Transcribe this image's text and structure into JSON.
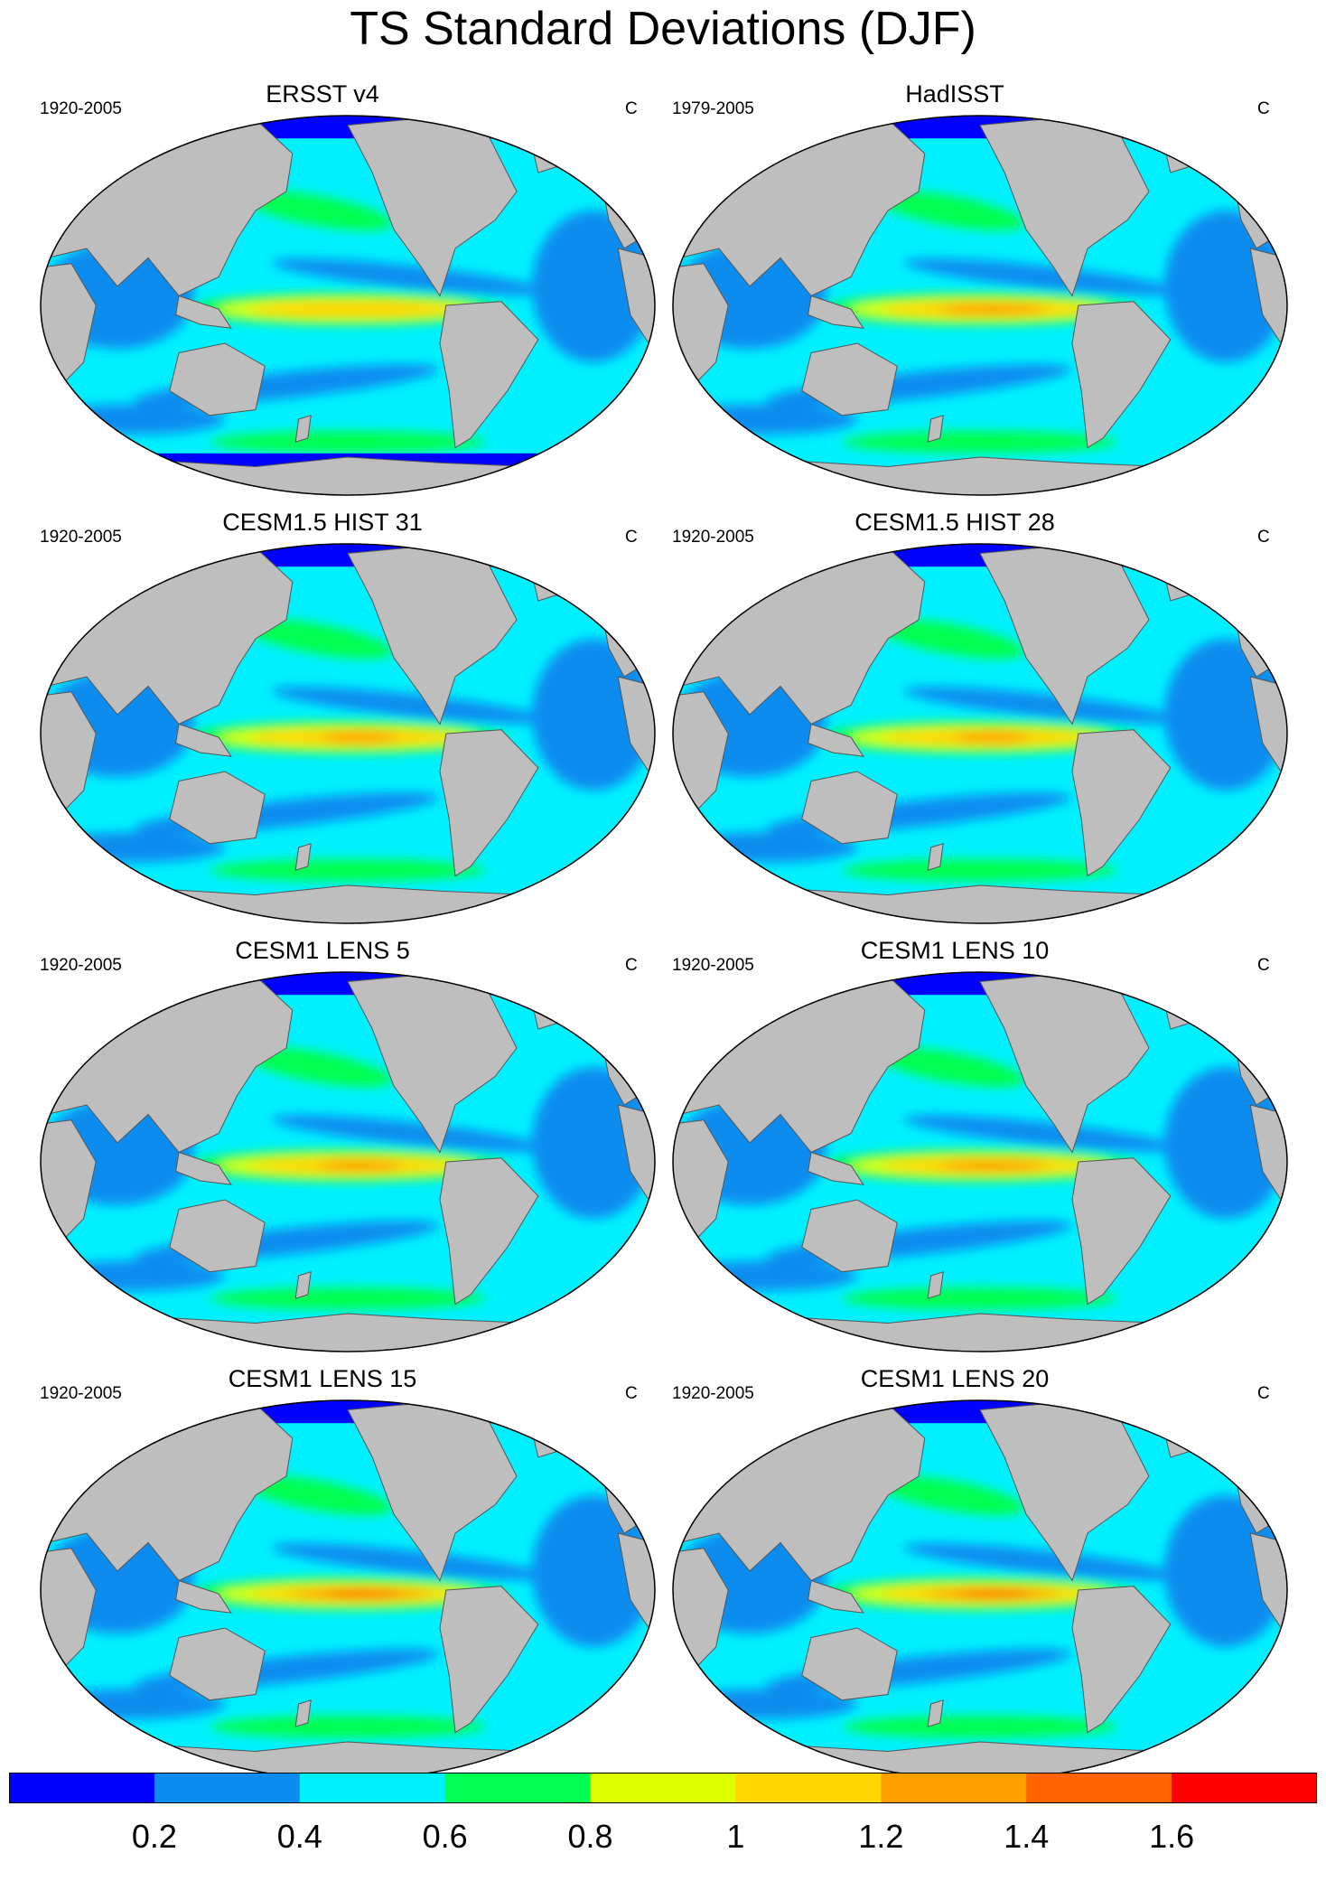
{
  "title": "TS Standard Deviations (DJF)",
  "units": "C",
  "panels": [
    {
      "title": "ERSST v4",
      "period": "1920-2005",
      "units": "C",
      "nino_strength": 0.35,
      "has_ice_bands": true
    },
    {
      "title": "HadISST",
      "period": "1979-2005",
      "units": "C",
      "nino_strength": 0.7,
      "has_ice_bands": false
    },
    {
      "title": "CESM1.5 HIST 31",
      "period": "1920-2005",
      "units": "C",
      "nino_strength": 0.5,
      "has_ice_bands": false
    },
    {
      "title": "CESM1.5 HIST 28",
      "period": "1920-2005",
      "units": "C",
      "nino_strength": 0.5,
      "has_ice_bands": false
    },
    {
      "title": "CESM1 LENS 5",
      "period": "1920-2005",
      "units": "C",
      "nino_strength": 0.55,
      "has_ice_bands": false
    },
    {
      "title": "CESM1 LENS 10",
      "period": "1920-2005",
      "units": "C",
      "nino_strength": 0.7,
      "has_ice_bands": false
    },
    {
      "title": "CESM1 LENS 15",
      "period": "1920-2005",
      "units": "C",
      "nino_strength": 0.9,
      "has_ice_bands": false
    },
    {
      "title": "CESM1 LENS 20",
      "period": "1920-2005",
      "units": "C",
      "nino_strength": 0.85,
      "has_ice_bands": false
    }
  ],
  "colorbar": {
    "colors": [
      "#0000ff",
      "#0a8cf0",
      "#00f0ff",
      "#00ff50",
      "#dcff00",
      "#ffd700",
      "#ffa000",
      "#ff6400",
      "#ff0000"
    ],
    "labels": [
      "0.2",
      "0.4",
      "0.6",
      "0.8",
      "1",
      "1.2",
      "1.4",
      "1.6"
    ]
  },
  "colors": {
    "land": "#bebebe",
    "coast": "#555555"
  }
}
